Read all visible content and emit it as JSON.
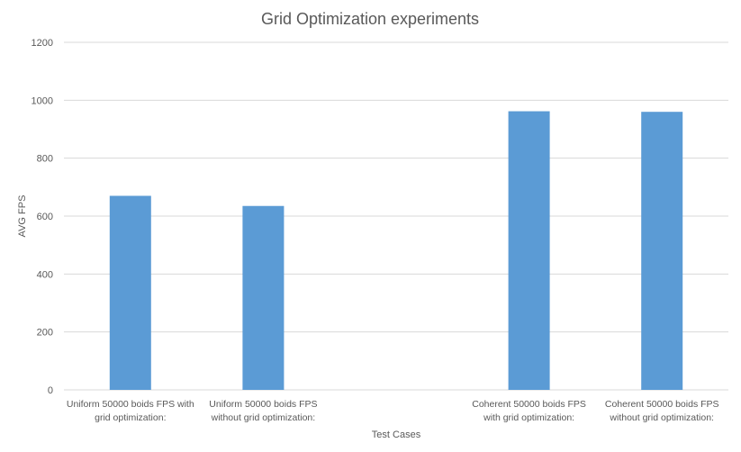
{
  "chart_data": {
    "type": "bar",
    "title": "Grid Optimization experiments",
    "xlabel": "Test Cases",
    "ylabel": "AVG FPS",
    "ylim": [
      0,
      1200
    ],
    "yticks": [
      "0",
      "200",
      "400",
      "600",
      "800",
      "1000",
      "1200"
    ],
    "grid": true,
    "legend": "none",
    "bar_color": "#5B9BD5",
    "gridline_color": "#D9D9D9",
    "categories": [
      [
        "Uniform 50000 boids FPS with",
        "grid optimization:"
      ],
      [
        "Uniform 50000 boids FPS",
        "without grid optimization:"
      ],
      [
        "",
        ""
      ],
      [
        "Coherent 50000 boids FPS",
        "with grid optimization:"
      ],
      [
        "Coherent 50000 boids FPS",
        "without grid optimization:"
      ]
    ],
    "values": [
      670,
      635,
      null,
      962,
      960
    ]
  }
}
